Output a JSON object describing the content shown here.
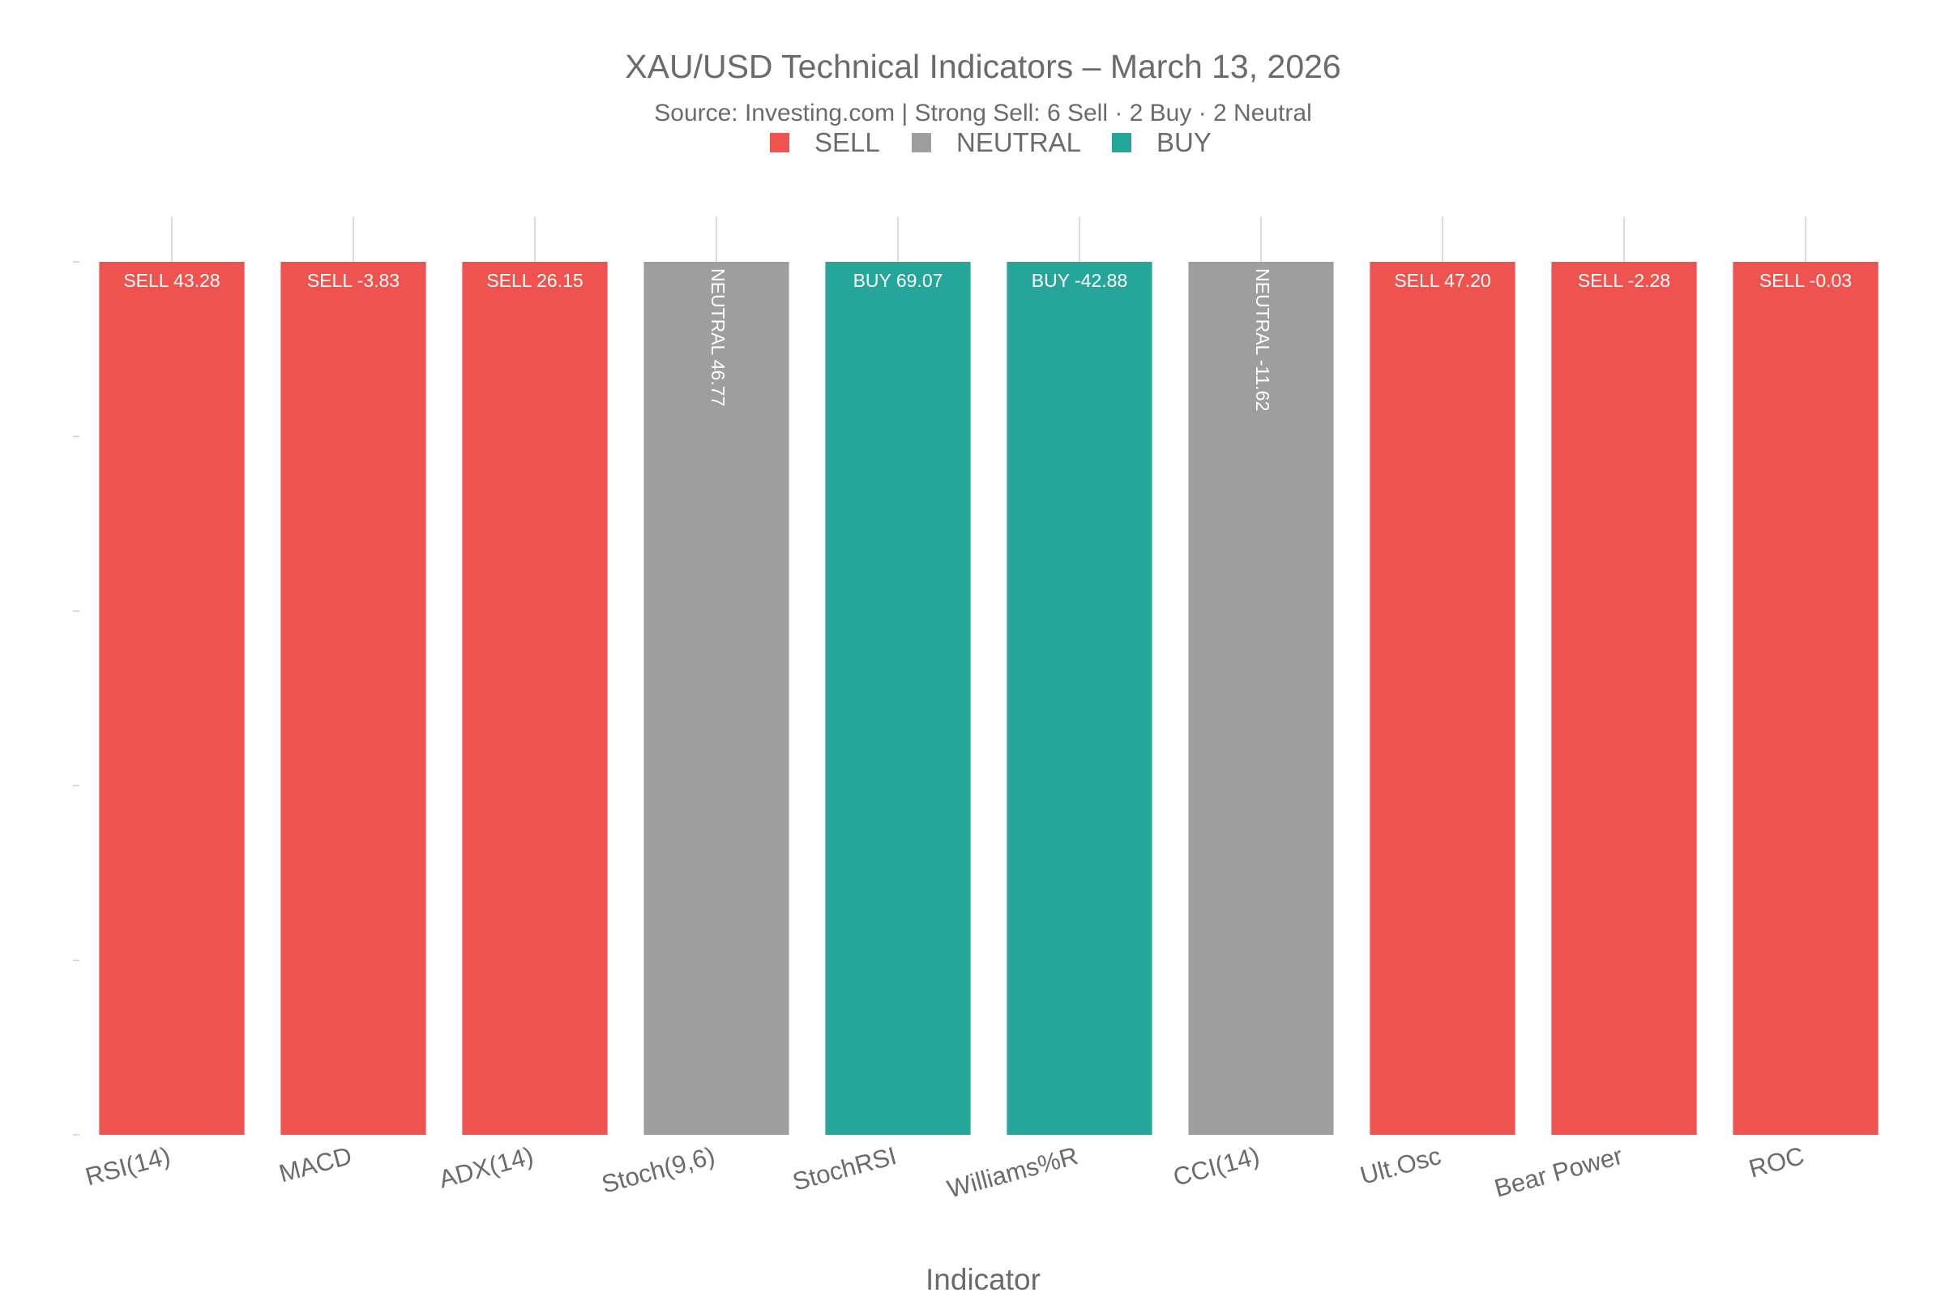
{
  "chart_data": {
    "type": "bar",
    "title": "XAU/USD Technical Indicators – March 13, 2026",
    "subtitle": "Source: Investing.com | Strong Sell: 6 Sell · 2 Buy · 2 Neutral",
    "xlabel": "Indicator",
    "ylabel": "",
    "categories": [
      "RSI(14)",
      "MACD",
      "ADX(14)",
      "Stoch(9,6)",
      "StochRSI",
      "Williams%R",
      "CCI(14)",
      "Ult.Osc",
      "Bear Power",
      "ROC"
    ],
    "values": [
      1,
      1,
      1,
      1,
      1,
      1,
      1,
      1,
      1,
      1
    ],
    "signals": [
      "SELL",
      "SELL",
      "SELL",
      "NEUTRAL",
      "BUY",
      "BUY",
      "NEUTRAL",
      "SELL",
      "SELL",
      "SELL"
    ],
    "indicator_values": [
      "43.28",
      "-3.83",
      "26.15",
      "46.77",
      "69.07",
      "-42.88",
      "-11.62",
      "47.20",
      "-2.28",
      "-0.03"
    ],
    "ylim": [
      0,
      1
    ],
    "grid": "vertical",
    "legend": {
      "placement": "top-center",
      "entries": [
        "SELL",
        "NEUTRAL",
        "BUY"
      ]
    },
    "colors": {
      "SELL": "#ef5350",
      "NEUTRAL": "#9e9e9e",
      "BUY": "#26a69a"
    }
  }
}
